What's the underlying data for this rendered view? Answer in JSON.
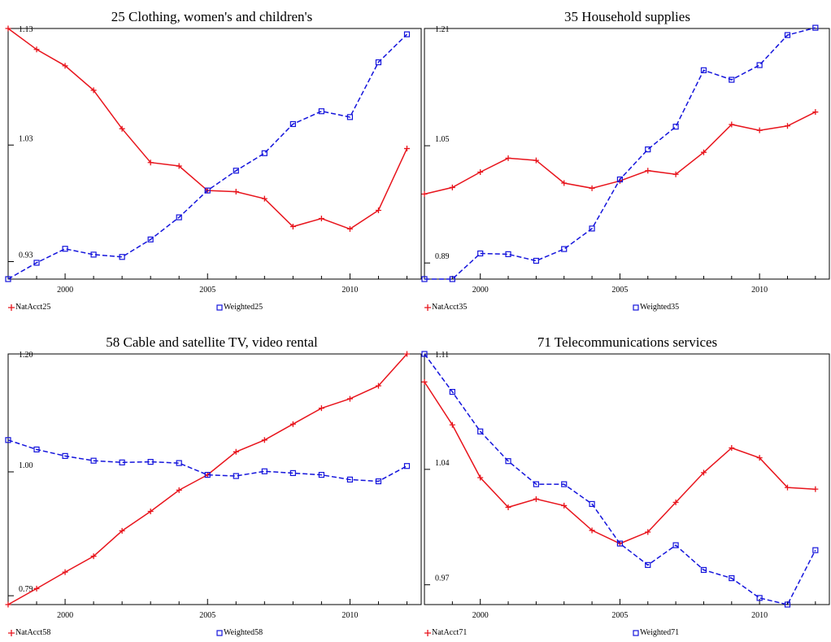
{
  "chart_data": [
    {
      "type": "line",
      "title": "25 Clothing, women's and children's",
      "x": [
        1998,
        1999,
        2000,
        2001,
        2002,
        2003,
        2004,
        2005,
        2006,
        2007,
        2008,
        2009,
        2010,
        2011,
        2012
      ],
      "xticks": [
        "2000",
        "2005",
        "2010"
      ],
      "xtick_values": [
        2000,
        2005,
        2010
      ],
      "yticks": [
        "0.93",
        "1.03",
        "1.13"
      ],
      "ytick_values": [
        0.93,
        1.03,
        1.13
      ],
      "ylim": [
        0.915,
        1.13
      ],
      "xlim": [
        1998,
        2012.5
      ],
      "series": [
        {
          "name": "NatAcct25",
          "color": "#e8141c",
          "style": "solid",
          "marker": "plus",
          "values": [
            1.13,
            1.112,
            1.098,
            1.077,
            1.044,
            1.015,
            1.012,
            0.991,
            0.99,
            0.984,
            0.96,
            0.967,
            0.958,
            0.974,
            1.027
          ]
        },
        {
          "name": "Weighted25",
          "color": "#1414dc",
          "style": "dashed",
          "marker": "square",
          "values": [
            0.915,
            0.929,
            0.941,
            0.936,
            0.934,
            0.949,
            0.968,
            0.991,
            1.008,
            1.023,
            1.048,
            1.059,
            1.054,
            1.101,
            1.125
          ]
        }
      ]
    },
    {
      "type": "line",
      "title": "35 Household supplies",
      "x": [
        1998,
        1999,
        2000,
        2001,
        2002,
        2003,
        2004,
        2005,
        2006,
        2007,
        2008,
        2009,
        2010,
        2011,
        2012
      ],
      "xticks": [
        "2000",
        "2005",
        "2010"
      ],
      "xtick_values": [
        2000,
        2005,
        2010
      ],
      "yticks": [
        "0.89",
        "1.05",
        "1.21"
      ],
      "ytick_values": [
        0.89,
        1.05,
        1.21
      ],
      "ylim": [
        0.868,
        1.21
      ],
      "xlim": [
        1998,
        2012.5
      ],
      "series": [
        {
          "name": "NatAcct35",
          "color": "#e8141c",
          "style": "solid",
          "marker": "plus",
          "values": [
            0.984,
            0.993,
            1.014,
            1.033,
            1.03,
            0.999,
            0.992,
            1.002,
            1.016,
            1.011,
            1.041,
            1.079,
            1.071,
            1.077,
            1.096
          ]
        },
        {
          "name": "Weighted35",
          "color": "#1414dc",
          "style": "dashed",
          "marker": "square",
          "values": [
            0.868,
            0.868,
            0.903,
            0.902,
            0.893,
            0.909,
            0.937,
            1.004,
            1.045,
            1.076,
            1.153,
            1.14,
            1.16,
            1.201,
            1.211
          ]
        }
      ]
    },
    {
      "type": "line",
      "title": "58 Cable and satellite TV, video rental",
      "x": [
        1998,
        1999,
        2000,
        2001,
        2002,
        2003,
        2004,
        2005,
        2006,
        2007,
        2008,
        2009,
        2010,
        2011,
        2012
      ],
      "xticks": [
        "2000",
        "2005",
        "2010"
      ],
      "xtick_values": [
        2000,
        2005,
        2010
      ],
      "yticks": [
        "0.79",
        "1.00",
        "1.20"
      ],
      "ytick_values": [
        0.79,
        1.0,
        1.2
      ],
      "ylim": [
        0.775,
        1.2
      ],
      "xlim": [
        1998,
        2012.5
      ],
      "series": [
        {
          "name": "NatAcct58",
          "color": "#e8141c",
          "style": "solid",
          "marker": "plus",
          "values": [
            0.775,
            0.802,
            0.83,
            0.857,
            0.9,
            0.933,
            0.969,
            0.995,
            1.034,
            1.054,
            1.081,
            1.108,
            1.124,
            1.146,
            1.2
          ]
        },
        {
          "name": "Weighted58",
          "color": "#1414dc",
          "style": "dashed",
          "marker": "square",
          "values": [
            1.054,
            1.038,
            1.027,
            1.019,
            1.016,
            1.017,
            1.015,
            0.995,
            0.993,
            1.001,
            0.998,
            0.995,
            0.987,
            0.984,
            1.01
          ]
        }
      ]
    },
    {
      "type": "line",
      "title": "71 Telecommunications services",
      "x": [
        1998,
        1999,
        2000,
        2001,
        2002,
        2003,
        2004,
        2005,
        2006,
        2007,
        2008,
        2009,
        2010,
        2011,
        2012
      ],
      "xticks": [
        "2000",
        "2005",
        "2010"
      ],
      "xtick_values": [
        2000,
        2005,
        2010
      ],
      "yticks": [
        "0.97",
        "1.04",
        "1.11"
      ],
      "ytick_values": [
        0.97,
        1.04,
        1.11
      ],
      "ylim": [
        0.958,
        1.11
      ],
      "xlim": [
        1998,
        2012.5
      ],
      "series": [
        {
          "name": "NatAcct71",
          "color": "#e8141c",
          "style": "solid",
          "marker": "plus",
          "values": [
            1.093,
            1.067,
            1.035,
            1.017,
            1.022,
            1.018,
            1.003,
            0.995,
            1.002,
            1.02,
            1.038,
            1.053,
            1.047,
            1.029,
            1.028
          ]
        },
        {
          "name": "Weighted71",
          "color": "#1414dc",
          "style": "dashed",
          "marker": "square",
          "values": [
            1.11,
            1.087,
            1.063,
            1.045,
            1.031,
            1.031,
            1.019,
            0.995,
            0.982,
            0.994,
            0.979,
            0.974,
            0.962,
            0.958,
            0.991
          ]
        }
      ]
    }
  ]
}
